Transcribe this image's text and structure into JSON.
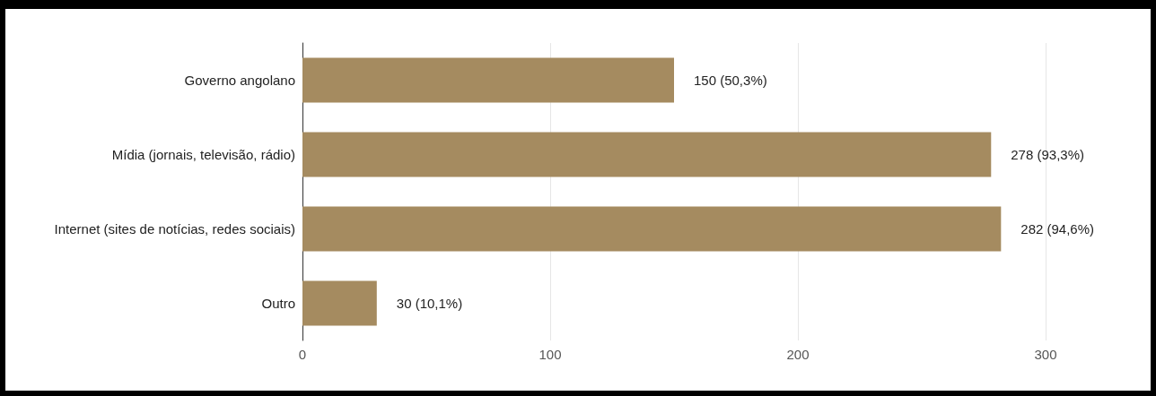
{
  "chart_data": {
    "type": "bar",
    "orientation": "horizontal",
    "categories": [
      "Governo angolano",
      "Mídia (jornais, televisão, rádio)",
      "Internet (sites de notícias, redes sociais)",
      "Outro"
    ],
    "values": [
      150,
      278,
      282,
      30
    ],
    "value_labels": [
      "150 (50,3%)",
      "278 (93,3%)",
      "282 (94,6%)",
      "30 (10,1%)"
    ],
    "color": "#a58b60",
    "xlim": [
      0,
      300
    ],
    "xticks": [
      0,
      100,
      200,
      300
    ],
    "grid": "x"
  }
}
